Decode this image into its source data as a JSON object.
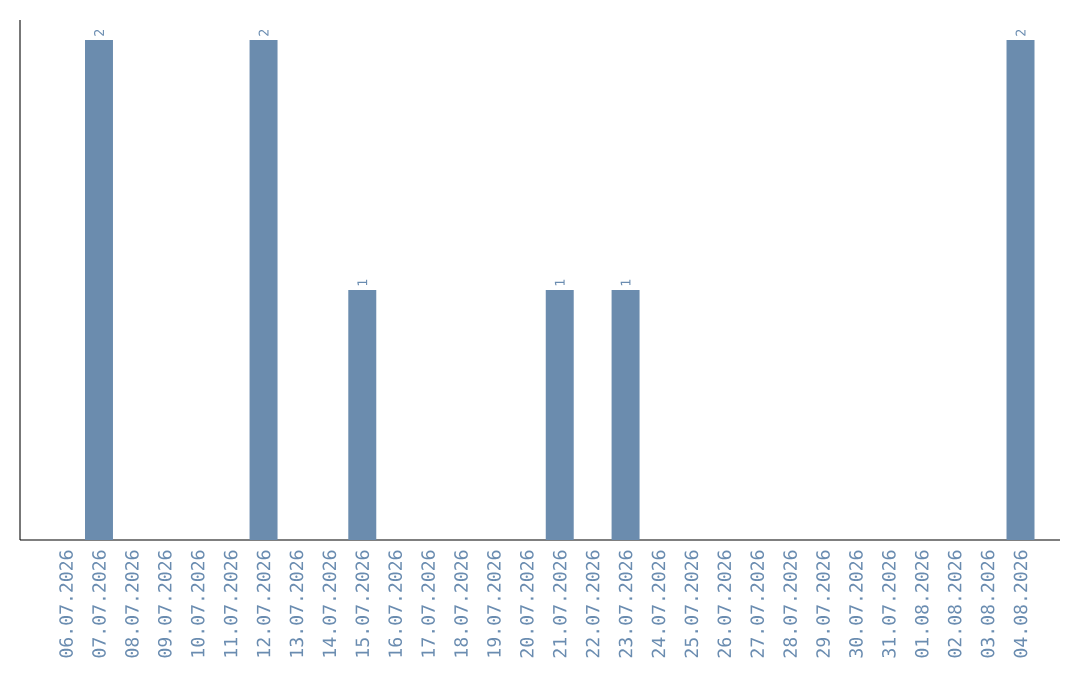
{
  "chart_data": {
    "type": "bar",
    "categories": [
      "06.07.2026",
      "07.07.2026",
      "08.07.2026",
      "09.07.2026",
      "10.07.2026",
      "11.07.2026",
      "12.07.2026",
      "13.07.2026",
      "14.07.2026",
      "15.07.2026",
      "16.07.2026",
      "17.07.2026",
      "18.07.2026",
      "19.07.2026",
      "20.07.2026",
      "21.07.2026",
      "22.07.2026",
      "23.07.2026",
      "24.07.2026",
      "25.07.2026",
      "26.07.2026",
      "27.07.2026",
      "28.07.2026",
      "29.07.2026",
      "30.07.2026",
      "31.07.2026",
      "01.08.2026",
      "02.08.2026",
      "03.08.2026",
      "04.08.2026"
    ],
    "values": [
      0,
      2,
      0,
      0,
      0,
      0,
      2,
      0,
      0,
      1,
      0,
      0,
      0,
      0,
      0,
      1,
      0,
      1,
      0,
      0,
      0,
      0,
      0,
      0,
      0,
      0,
      0,
      0,
      0,
      2
    ],
    "value_labels": [
      null,
      "2",
      null,
      null,
      null,
      null,
      "2",
      null,
      null,
      "1",
      null,
      null,
      null,
      null,
      null,
      "1",
      null,
      "1",
      null,
      null,
      null,
      null,
      null,
      null,
      null,
      null,
      null,
      null,
      null,
      "2"
    ],
    "color": "#6b8cae"
  }
}
